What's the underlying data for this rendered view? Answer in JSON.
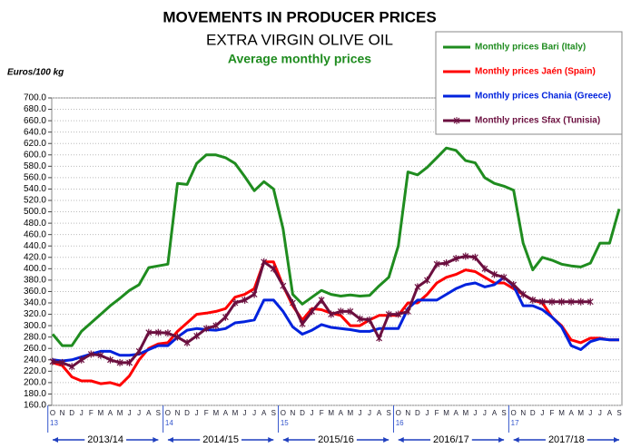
{
  "chart_data": {
    "type": "line",
    "title": "MOVEMENTS IN PRODUCER PRICES",
    "subtitle": "EXTRA VIRGIN OLIVE OIL",
    "subtitle2": "Average monthly prices",
    "y_label": "Euros/100 kg",
    "categories": [
      "O",
      "N",
      "D",
      "J",
      "F",
      "M",
      "A",
      "M",
      "J",
      "J",
      "A",
      "S",
      "O",
      "N",
      "D",
      "J",
      "F",
      "M",
      "A",
      "M",
      "J",
      "J",
      "A",
      "S",
      "O",
      "N",
      "D",
      "J",
      "F",
      "M",
      "A",
      "M",
      "J",
      "J",
      "A",
      "S",
      "O",
      "N",
      "D",
      "J",
      "F",
      "M",
      "A",
      "M",
      "J",
      "J",
      "A",
      "S",
      "O",
      "N",
      "D",
      "J",
      "F",
      "M",
      "A",
      "M",
      "J",
      "J",
      "A",
      "S"
    ],
    "year_labels": [
      "13",
      "14",
      "15",
      "16",
      "17"
    ],
    "seasons": [
      "2013/14",
      "2014/15",
      "2015/16",
      "2016/17",
      "2017/18"
    ],
    "ylim": [
      160,
      700
    ],
    "yticks": [
      {
        "value": 160,
        "label": "160.0"
      },
      {
        "value": 180,
        "label": "180.0"
      },
      {
        "value": 200,
        "label": "200.0"
      },
      {
        "value": 220,
        "label": "220.0"
      },
      {
        "value": 240,
        "label": "240.0"
      },
      {
        "value": 260,
        "label": "260.0"
      },
      {
        "value": 280,
        "label": "280.0"
      },
      {
        "value": 300,
        "label": "300.0"
      },
      {
        "value": 320,
        "label": "320.0"
      },
      {
        "value": 340,
        "label": "340.0"
      },
      {
        "value": 360,
        "label": "360.0"
      },
      {
        "value": 380,
        "label": "380.0"
      },
      {
        "value": 400,
        "label": "400.0"
      },
      {
        "value": 420,
        "label": "420.0"
      },
      {
        "value": 440,
        "label": "440.0"
      },
      {
        "value": 460,
        "label": "460.0"
      },
      {
        "value": 480,
        "label": "480.0"
      },
      {
        "value": 500,
        "label": "500.0"
      },
      {
        "value": 520,
        "label": "520.0"
      },
      {
        "value": 540,
        "label": "540.0"
      },
      {
        "value": 560,
        "label": "560.0"
      },
      {
        "value": 580,
        "label": "580.0"
      },
      {
        "value": 600,
        "label": "600.0"
      },
      {
        "value": 620,
        "label": "620.0"
      },
      {
        "value": 640,
        "label": "640.0"
      },
      {
        "value": 660,
        "label": "660.0"
      },
      {
        "value": 680,
        "label": "680.0"
      },
      {
        "value": 700,
        "label": "700.0"
      }
    ],
    "grid": true,
    "legend": "upper right",
    "series": [
      {
        "name": "Monthly prices Bari (Italy)",
        "color": "#1f8c1f",
        "values": [
          285,
          265,
          265,
          290,
          305,
          320,
          335,
          348,
          362,
          372,
          402,
          405,
          408,
          550,
          548,
          585,
          600,
          600,
          595,
          585,
          562,
          537,
          553,
          540,
          470,
          355,
          338,
          350,
          362,
          355,
          352,
          354,
          352,
          353,
          370,
          385,
          440,
          570,
          565,
          578,
          595,
          612,
          608,
          590,
          586,
          560,
          550,
          545,
          538,
          445,
          398,
          420,
          415,
          408,
          405,
          403,
          410,
          445,
          445,
          505
        ]
      },
      {
        "name": "Monthly prices Jaén (Spain)",
        "color": "#ff0000",
        "values": [
          235,
          230,
          210,
          203,
          203,
          198,
          200,
          195,
          212,
          240,
          260,
          268,
          270,
          290,
          305,
          320,
          322,
          325,
          330,
          350,
          355,
          365,
          412,
          412,
          370,
          335,
          310,
          330,
          328,
          322,
          318,
          300,
          300,
          310,
          318,
          318,
          318,
          340,
          340,
          355,
          375,
          385,
          390,
          398,
          395,
          385,
          375,
          375,
          365,
          355,
          345,
          340,
          315,
          300,
          275,
          270,
          278,
          278,
          275,
          275
        ]
      },
      {
        "name": "Monthly prices Chania (Greece)",
        "color": "#0022dd",
        "values": [
          240,
          238,
          240,
          245,
          250,
          255,
          255,
          248,
          248,
          250,
          258,
          265,
          265,
          280,
          292,
          295,
          293,
          292,
          295,
          305,
          307,
          310,
          345,
          345,
          325,
          298,
          285,
          292,
          302,
          297,
          295,
          293,
          290,
          290,
          295,
          295,
          295,
          330,
          345,
          345,
          345,
          355,
          365,
          372,
          375,
          368,
          372,
          385,
          370,
          335,
          335,
          328,
          315,
          298,
          265,
          258,
          272,
          277,
          275,
          275
        ]
      },
      {
        "name": "Monthly prices Sfax (Tunisia)",
        "color": "#6b0f3f",
        "marker": "star",
        "values": [
          237,
          235,
          228,
          240,
          250,
          248,
          240,
          235,
          235,
          255,
          288,
          288,
          287,
          280,
          270,
          282,
          295,
          300,
          315,
          340,
          345,
          355,
          412,
          400,
          370,
          340,
          303,
          325,
          345,
          320,
          325,
          325,
          312,
          310,
          278,
          320,
          320,
          325,
          368,
          380,
          408,
          410,
          418,
          422,
          420,
          400,
          390,
          385,
          372,
          355,
          345,
          342,
          342,
          342,
          342,
          342,
          342,
          null,
          null,
          null
        ]
      }
    ]
  }
}
